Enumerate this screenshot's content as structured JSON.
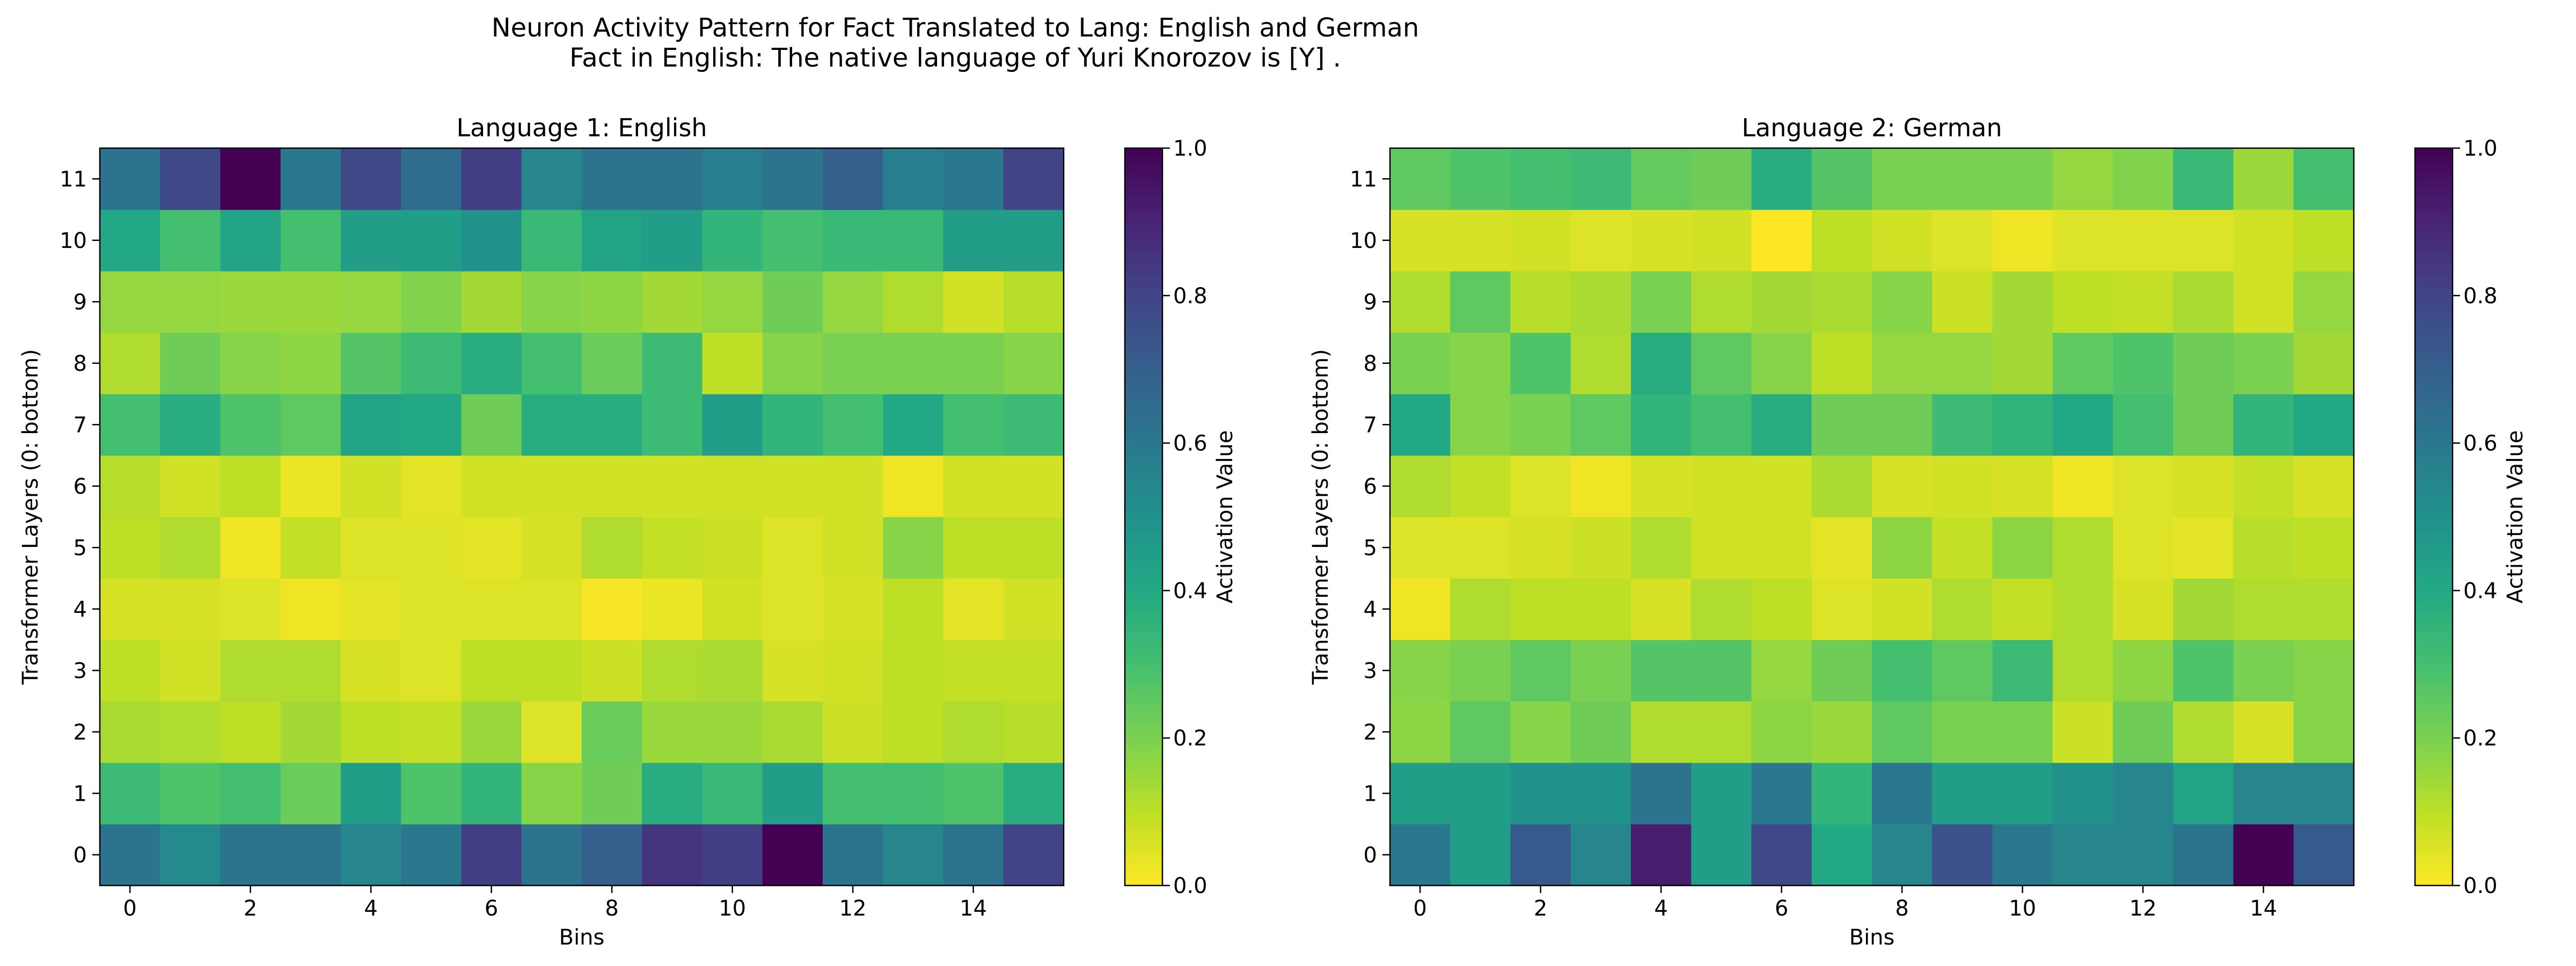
{
  "figure": {
    "title_line1": "Neuron Activity Pattern for Fact Translated to Lang: English and German",
    "title_line2": "Fact in English: The native language of Yuri Knorozov is [Y] ."
  },
  "colormap": "viridis_r",
  "chart_data": [
    {
      "type": "heatmap",
      "title": "Language 1: English",
      "xlabel": "Bins",
      "ylabel": "Transformer Layers (0: bottom)",
      "colorbar_label": "Activation Value",
      "x_ticks": [
        0,
        2,
        4,
        6,
        8,
        10,
        12,
        14
      ],
      "y_ticks": [
        0,
        1,
        2,
        3,
        4,
        5,
        6,
        7,
        8,
        9,
        10,
        11
      ],
      "colorbar_ticks": [
        "0.0",
        "0.2",
        "0.4",
        "0.6",
        "0.8",
        "1.0"
      ],
      "clim": [
        0,
        1
      ],
      "n_bins": 16,
      "rows": [
        [
          0.62,
          0.53,
          0.62,
          0.62,
          0.55,
          0.6,
          0.82,
          0.62,
          0.7,
          0.85,
          0.82,
          1.0,
          0.62,
          0.55,
          0.62,
          0.8
        ],
        [
          0.32,
          0.28,
          0.3,
          0.23,
          0.45,
          0.28,
          0.35,
          0.18,
          0.22,
          0.38,
          0.33,
          0.45,
          0.3,
          0.3,
          0.28,
          0.38
        ],
        [
          0.13,
          0.12,
          0.1,
          0.14,
          0.1,
          0.09,
          0.15,
          0.05,
          0.23,
          0.15,
          0.15,
          0.13,
          0.08,
          0.1,
          0.12,
          0.11
        ],
        [
          0.1,
          0.07,
          0.12,
          0.12,
          0.06,
          0.05,
          0.1,
          0.1,
          0.08,
          0.12,
          0.13,
          0.06,
          0.07,
          0.1,
          0.09,
          0.09
        ],
        [
          0.06,
          0.06,
          0.05,
          0.02,
          0.04,
          0.05,
          0.05,
          0.05,
          0.01,
          0.03,
          0.07,
          0.05,
          0.06,
          0.1,
          0.04,
          0.07
        ],
        [
          0.1,
          0.12,
          0.02,
          0.09,
          0.05,
          0.05,
          0.04,
          0.06,
          0.12,
          0.09,
          0.08,
          0.05,
          0.07,
          0.18,
          0.1,
          0.1
        ],
        [
          0.11,
          0.07,
          0.1,
          0.03,
          0.07,
          0.04,
          0.07,
          0.07,
          0.07,
          0.07,
          0.07,
          0.07,
          0.07,
          0.02,
          0.07,
          0.07
        ],
        [
          0.3,
          0.38,
          0.28,
          0.25,
          0.42,
          0.4,
          0.22,
          0.38,
          0.38,
          0.32,
          0.45,
          0.35,
          0.3,
          0.4,
          0.3,
          0.32
        ],
        [
          0.12,
          0.22,
          0.18,
          0.17,
          0.27,
          0.32,
          0.38,
          0.3,
          0.23,
          0.32,
          0.1,
          0.18,
          0.2,
          0.2,
          0.2,
          0.18
        ],
        [
          0.16,
          0.16,
          0.15,
          0.15,
          0.16,
          0.19,
          0.14,
          0.18,
          0.17,
          0.14,
          0.16,
          0.22,
          0.16,
          0.12,
          0.07,
          0.11
        ],
        [
          0.4,
          0.3,
          0.42,
          0.3,
          0.45,
          0.45,
          0.5,
          0.33,
          0.42,
          0.45,
          0.35,
          0.3,
          0.33,
          0.33,
          0.45,
          0.45
        ],
        [
          0.62,
          0.78,
          1.0,
          0.6,
          0.78,
          0.65,
          0.82,
          0.55,
          0.62,
          0.62,
          0.58,
          0.62,
          0.7,
          0.58,
          0.6,
          0.8
        ]
      ]
    },
    {
      "type": "heatmap",
      "title": "Language 2: German",
      "xlabel": "Bins",
      "ylabel": "Transformer Layers (0: bottom)",
      "colorbar_label": "Activation Value",
      "x_ticks": [
        0,
        2,
        4,
        6,
        8,
        10,
        12,
        14
      ],
      "y_ticks": [
        0,
        1,
        2,
        3,
        4,
        5,
        6,
        7,
        8,
        9,
        10,
        11
      ],
      "colorbar_ticks": [
        "0.0",
        "0.2",
        "0.4",
        "0.6",
        "0.8",
        "1.0"
      ],
      "clim": [
        0,
        1
      ],
      "n_bins": 16,
      "rows": [
        [
          0.6,
          0.45,
          0.72,
          0.55,
          0.92,
          0.45,
          0.78,
          0.4,
          0.55,
          0.75,
          0.6,
          0.55,
          0.55,
          0.62,
          1.0,
          0.72
        ],
        [
          0.45,
          0.45,
          0.5,
          0.5,
          0.62,
          0.45,
          0.6,
          0.35,
          0.6,
          0.45,
          0.45,
          0.5,
          0.55,
          0.42,
          0.55,
          0.55
        ],
        [
          0.17,
          0.25,
          0.18,
          0.22,
          0.12,
          0.12,
          0.17,
          0.15,
          0.25,
          0.2,
          0.2,
          0.08,
          0.22,
          0.12,
          0.06,
          0.18
        ],
        [
          0.18,
          0.2,
          0.25,
          0.2,
          0.27,
          0.27,
          0.16,
          0.22,
          0.3,
          0.25,
          0.32,
          0.12,
          0.17,
          0.28,
          0.2,
          0.18
        ],
        [
          0.02,
          0.12,
          0.1,
          0.1,
          0.06,
          0.12,
          0.1,
          0.05,
          0.07,
          0.12,
          0.09,
          0.12,
          0.06,
          0.14,
          0.12,
          0.12
        ],
        [
          0.05,
          0.05,
          0.06,
          0.08,
          0.12,
          0.07,
          0.07,
          0.04,
          0.17,
          0.09,
          0.17,
          0.12,
          0.05,
          0.04,
          0.11,
          0.1
        ],
        [
          0.12,
          0.09,
          0.05,
          0.02,
          0.06,
          0.07,
          0.07,
          0.13,
          0.06,
          0.07,
          0.06,
          0.02,
          0.05,
          0.06,
          0.09,
          0.06
        ],
        [
          0.4,
          0.18,
          0.2,
          0.25,
          0.35,
          0.3,
          0.38,
          0.22,
          0.22,
          0.32,
          0.35,
          0.4,
          0.3,
          0.22,
          0.35,
          0.4
        ],
        [
          0.2,
          0.18,
          0.28,
          0.12,
          0.38,
          0.25,
          0.18,
          0.1,
          0.16,
          0.16,
          0.14,
          0.25,
          0.28,
          0.22,
          0.2,
          0.14
        ],
        [
          0.12,
          0.25,
          0.11,
          0.13,
          0.2,
          0.12,
          0.14,
          0.13,
          0.18,
          0.08,
          0.14,
          0.1,
          0.09,
          0.13,
          0.07,
          0.16
        ],
        [
          0.06,
          0.06,
          0.07,
          0.05,
          0.06,
          0.07,
          0.0,
          0.1,
          0.07,
          0.05,
          0.02,
          0.05,
          0.05,
          0.05,
          0.07,
          0.1
        ],
        [
          0.25,
          0.28,
          0.3,
          0.32,
          0.24,
          0.22,
          0.38,
          0.27,
          0.2,
          0.2,
          0.2,
          0.16,
          0.19,
          0.33,
          0.15,
          0.3
        ]
      ]
    }
  ]
}
